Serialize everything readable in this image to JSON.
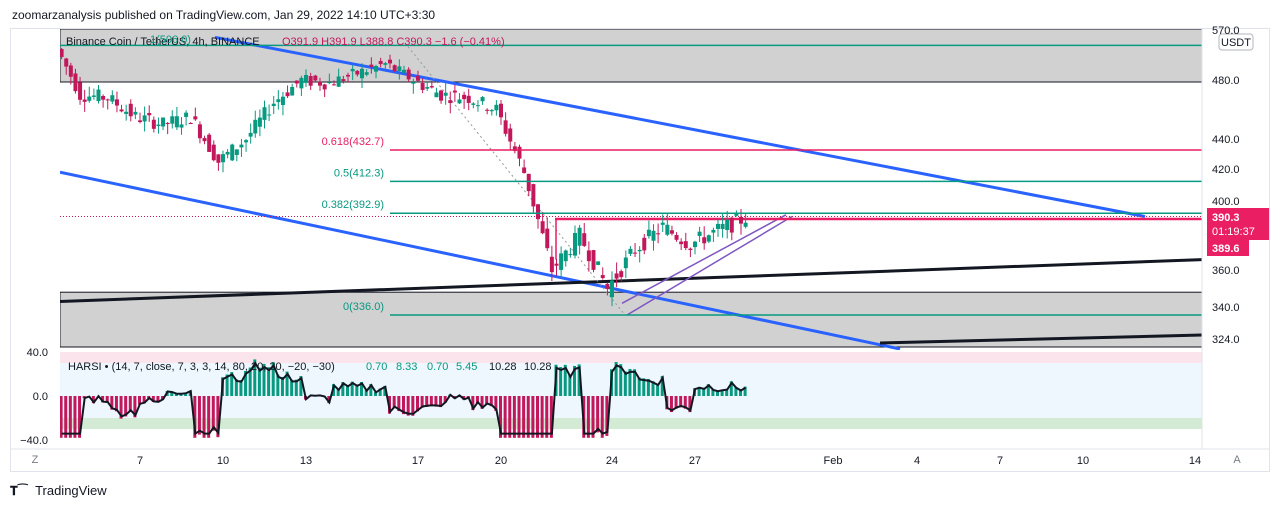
{
  "header": {
    "publisher": "zoomarzanalysis published on TradingView.com, Jan 29, 2022 14:10 UTC+3:30"
  },
  "legend": {
    "title": "Binance Coin / TetherUS, 4h, BINANCE",
    "ohlc": "O391.9 H391.9 L388.8 C390.3 −1.6 (−0.41%)"
  },
  "price_axis": {
    "unit_badge": "USDT",
    "top_partial": "570.0",
    "ticks": [
      480,
      440,
      420,
      400,
      360,
      340,
      324
    ],
    "current_price": "390.3",
    "countdown": "01:19:37",
    "line_price": "389.6"
  },
  "time_axis": {
    "labels": [
      "7",
      "10",
      "13",
      "17",
      "20",
      "24",
      "27",
      "Feb",
      "4",
      "7",
      "10",
      "14"
    ],
    "z_button": "Z",
    "a_button": "A"
  },
  "fibonacci": {
    "levels": [
      {
        "label": "0.618(432.7)",
        "price": 432.7,
        "color": "#e91e63"
      },
      {
        "label": "0.5(412.3)",
        "price": 412.3,
        "color": "#089981"
      },
      {
        "label": "0.382(392.9)",
        "price": 392.9,
        "color": "#089981"
      },
      {
        "label": "0(336.0)",
        "price": 336.0,
        "color": "#089981"
      }
    ],
    "top_label": "1(506.0)"
  },
  "indicator": {
    "legend": "HARSI • (14, 7, close, 7, 3, 3, 14, 80, 20, 30, −20, −30)",
    "values": [
      "0.70",
      "8.33",
      "0.70",
      "5.45",
      "10.28",
      "10.28"
    ],
    "ticks": [
      "40.0",
      "0.0",
      "−40.0"
    ]
  },
  "footer": {
    "brand": "TradingView"
  },
  "colors": {
    "up": "#089981",
    "down": "#c2185b",
    "trendline": "#2962ff",
    "fib_top": "#e91e63",
    "channel": "#7e57c2"
  },
  "chart_data": {
    "type": "candlestick",
    "symbol": "Binance Coin / TetherUS",
    "interval": "4h",
    "exchange": "BINANCE",
    "ylim": [
      318,
      572
    ],
    "close_series_approx": [
      {
        "date": "Jan 4",
        "close": 510
      },
      {
        "date": "Jan 5",
        "close": 470
      },
      {
        "date": "Jan 6",
        "close": 468
      },
      {
        "date": "Jan 7",
        "close": 455
      },
      {
        "date": "Jan 8",
        "close": 450
      },
      {
        "date": "Jan 9",
        "close": 455
      },
      {
        "date": "Jan 10",
        "close": 425
      },
      {
        "date": "Jan 11",
        "close": 440
      },
      {
        "date": "Jan 12",
        "close": 465
      },
      {
        "date": "Jan 13",
        "close": 480
      },
      {
        "date": "Jan 14",
        "close": 478
      },
      {
        "date": "Jan 15",
        "close": 485
      },
      {
        "date": "Jan 16",
        "close": 492
      },
      {
        "date": "Jan 17",
        "close": 480
      },
      {
        "date": "Jan 18",
        "close": 470
      },
      {
        "date": "Jan 19",
        "close": 468
      },
      {
        "date": "Jan 20",
        "close": 460
      },
      {
        "date": "Jan 21",
        "close": 418
      },
      {
        "date": "Jan 22",
        "close": 360
      },
      {
        "date": "Jan 23",
        "close": 380
      },
      {
        "date": "Jan 24",
        "close": 350
      },
      {
        "date": "Jan 25",
        "close": 372
      },
      {
        "date": "Jan 26",
        "close": 385
      },
      {
        "date": "Jan 27",
        "close": 375
      },
      {
        "date": "Jan 28",
        "close": 383
      },
      {
        "date": "Jan 29",
        "close": 390.3
      }
    ]
  }
}
